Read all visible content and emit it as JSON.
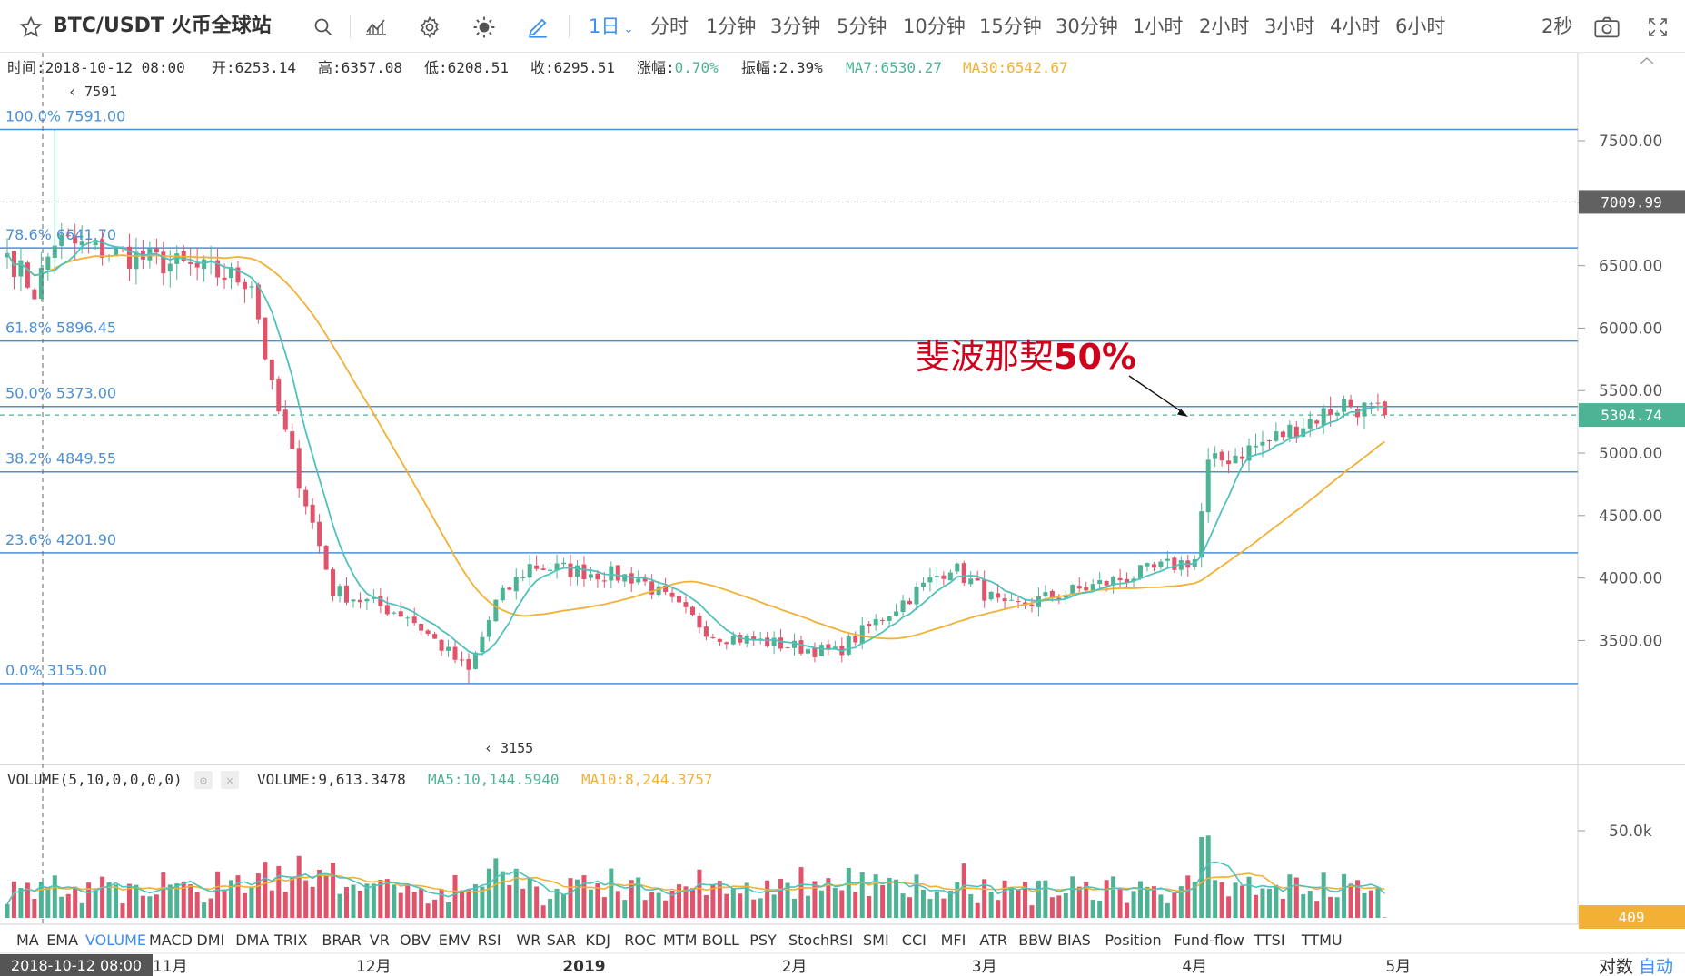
{
  "toolbar": {
    "symbol": "BTC/USDT 火币全球站",
    "intervals": [
      "1日",
      "分时",
      "1分钟",
      "3分钟",
      "5分钟",
      "10分钟",
      "15分钟",
      "30分钟",
      "1小时",
      "2小时",
      "3小时",
      "4小时",
      "6小时"
    ],
    "active_interval": "1日",
    "refresh": "2秒",
    "icons": [
      "star-icon",
      "search-icon",
      "indicator-icon",
      "settings-icon",
      "theme-icon",
      "draw-icon",
      "camera-icon",
      "fullscreen-icon"
    ]
  },
  "info_bar": {
    "time": "时间:2018-10-12 08:00",
    "open": "开:6253.14",
    "high": "高:6357.08",
    "low": "低:6208.51",
    "close": "收:6295.51",
    "change_label": "涨幅:",
    "change_value": "0.70%",
    "amplitude": "振幅:2.39%",
    "ma7": "MA7:6530.27",
    "ma30": "MA30:6542.67"
  },
  "fib_labels": [
    {
      "text": "100.0% 7591.00",
      "price": 7591
    },
    {
      "text": "78.6% 6641.70",
      "price": 6641.7
    },
    {
      "text": "61.8% 5896.45",
      "price": 5896.45
    },
    {
      "text": "50.0% 5373.00",
      "price": 5373
    },
    {
      "text": "38.2% 4849.55",
      "price": 4849.55
    },
    {
      "text": "23.6% 4201.90",
      "price": 4201.9
    },
    {
      "text": "0.0% 3155.00",
      "price": 3155
    }
  ],
  "annotation": {
    "text": "斐波那契",
    "bold": "50%"
  },
  "high_marker": "7591",
  "low_marker": "3155",
  "price_axis": [
    "7500.00",
    "7000.00",
    "6500.00",
    "6000.00",
    "5500.00",
    "5000.00",
    "4500.00",
    "4000.00",
    "3500.00"
  ],
  "price_tags": {
    "dashed_top": "7009.99",
    "current": "5304.74"
  },
  "volume_info": {
    "title": "VOLUME(5,10,0,0,0,0)",
    "value": "VOLUME:9,613.3478",
    "ma5": "MA5:10,144.5940",
    "ma10": "MA10:8,244.3757"
  },
  "volume_axis": {
    "label": "50.0k",
    "current": "409"
  },
  "indicators": [
    "MA",
    "EMA",
    "VOLUME",
    "MACD",
    "DMI",
    "DMA",
    "TRIX",
    "BRAR",
    "VR",
    "OBV",
    "EMV",
    "RSI",
    "WR",
    "SAR",
    "KDJ",
    "ROC",
    "MTM",
    "BOLL",
    "PSY",
    "StochRSI",
    "SMI",
    "CCI",
    "MFI",
    "ATR",
    "BBW",
    "BIAS",
    "Position",
    "Fund-flow",
    "TTSI",
    "TTMU"
  ],
  "active_indicator": "VOLUME",
  "time_axis": {
    "cursor_label": "2018-10-12 08:00",
    "labels": [
      {
        "text": "11月",
        "bold": false
      },
      {
        "text": "12月",
        "bold": false
      },
      {
        "text": "2019",
        "bold": true
      },
      {
        "text": "2月",
        "bold": false
      },
      {
        "text": "3月",
        "bold": false
      },
      {
        "text": "4月",
        "bold": false
      },
      {
        "text": "5月",
        "bold": false
      }
    ],
    "log_button": "对数",
    "auto_button": "自动"
  },
  "colors": {
    "up": "#4db394",
    "down": "#e0536b",
    "fib": "#4a90d9",
    "ma7": "#50c2bb",
    "ma30": "#f2b134",
    "accent": "#3e8ef7",
    "annotation": "#d0021b"
  },
  "chart_data": {
    "type": "candlestick",
    "period": "1日",
    "price_range": [
      3050,
      7800
    ],
    "close_keyframes": [
      {
        "date": "2018-10-08",
        "close": 6600
      },
      {
        "date": "2018-10-12",
        "close": 6295.51
      },
      {
        "date": "2018-10-15",
        "close": 6700
      },
      {
        "date": "2018-11-13",
        "close": 6380
      },
      {
        "date": "2018-11-16",
        "close": 5500
      },
      {
        "date": "2018-11-25",
        "close": 3900
      },
      {
        "date": "2018-12-06",
        "close": 3700
      },
      {
        "date": "2018-12-15",
        "close": 3250
      },
      {
        "date": "2018-12-19",
        "close": 3800
      },
      {
        "date": "2018-12-24",
        "close": 4100
      },
      {
        "date": "2019-01-09",
        "close": 4000
      },
      {
        "date": "2019-01-20",
        "close": 3550
      },
      {
        "date": "2019-02-07",
        "close": 3400
      },
      {
        "date": "2019-02-24",
        "close": 4100
      },
      {
        "date": "2019-03-04",
        "close": 3750
      },
      {
        "date": "2019-04-01",
        "close": 4150
      },
      {
        "date": "2019-04-03",
        "close": 4900
      },
      {
        "date": "2019-04-12",
        "close": 5100
      },
      {
        "date": "2019-04-23",
        "close": 5400
      },
      {
        "date": "2019-04-29",
        "close": 5304.74
      }
    ],
    "notable_points": [
      {
        "label": "high",
        "value": 7591
      },
      {
        "label": "low",
        "value": 3155
      },
      {
        "label": "last",
        "value": 5304.74
      }
    ],
    "volume_peak": "50.0k",
    "volume_last": 409
  }
}
